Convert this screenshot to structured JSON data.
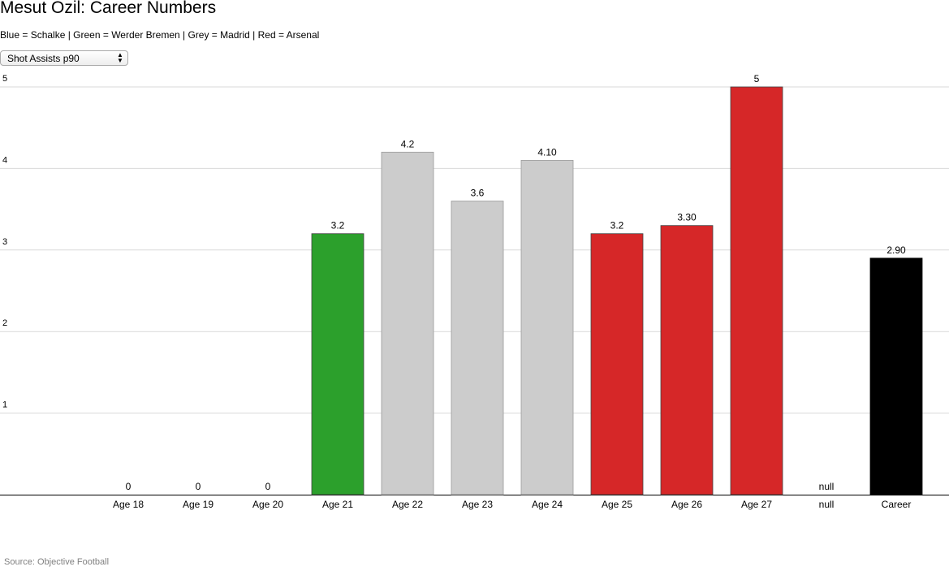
{
  "title": "Mesut Özil: Career Numbers",
  "legend_text": "Blue = Schalke | Green = Werder Bremen | Grey = Madrid | Red = Arsenal",
  "metric_select": {
    "value": "Shot Assists p90"
  },
  "source": "Source: Objective Football",
  "colors": {
    "green": "#2ca02c",
    "grey": "#cccccc",
    "red": "#d62728",
    "black": "#000000"
  },
  "chart_data": {
    "type": "bar",
    "title": "Mesut Özil: Career Numbers",
    "xlabel": "",
    "ylabel": "",
    "ylim": [
      0,
      5
    ],
    "yticks": [
      "1",
      "2",
      "3",
      "4",
      "5"
    ],
    "grid": true,
    "categories": [
      "Age 18",
      "Age 19",
      "Age 20",
      "Age 21",
      "Age 22",
      "Age 23",
      "Age 24",
      "Age 25",
      "Age 26",
      "Age 27",
      "null",
      "Career"
    ],
    "values": [
      0,
      0,
      0,
      3.2,
      4.2,
      3.6,
      4.1,
      3.2,
      3.3,
      5,
      null,
      2.9
    ],
    "value_labels": [
      "0",
      "0",
      "0",
      "3.2",
      "4.2",
      "3.6",
      "4.10",
      "3.2",
      "3.30",
      "5",
      "null",
      "2.90"
    ],
    "bar_colors": [
      "#2ca02c",
      "#2ca02c",
      "#2ca02c",
      "#2ca02c",
      "#cccccc",
      "#cccccc",
      "#cccccc",
      "#d62728",
      "#d62728",
      "#d62728",
      "#d62728",
      "#000000"
    ]
  }
}
